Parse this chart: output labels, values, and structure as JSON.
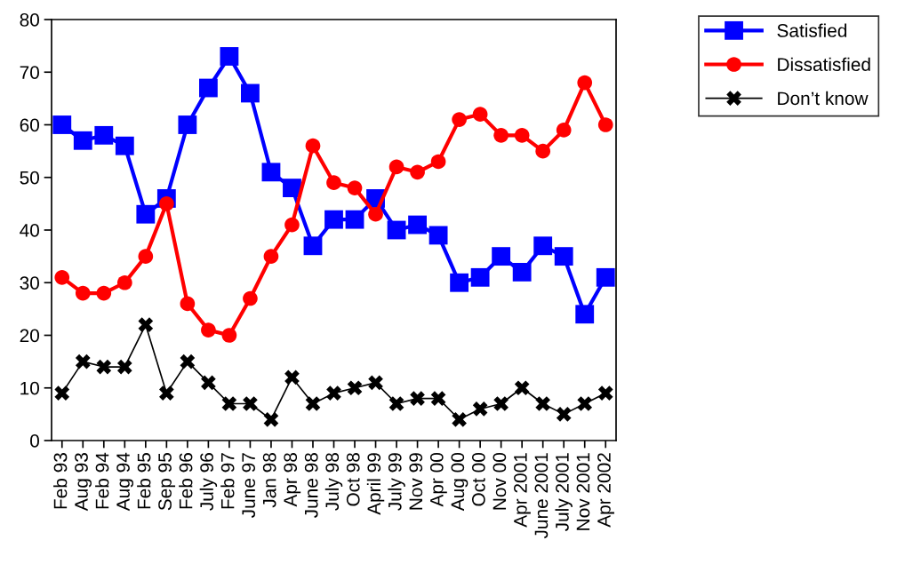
{
  "chart_data": {
    "type": "line",
    "categories": [
      "Feb 93",
      "Aug 93",
      "Feb 94",
      "Aug 94",
      "Feb 95",
      "Sep 95",
      "Feb 96",
      "July 96",
      "Feb 97",
      "June 97",
      "Jan 98",
      "Apr 98",
      "June 98",
      "July 98",
      "Oct 98",
      "April 99",
      "July 99",
      "Nov 99",
      "Apr 00",
      "Aug 00",
      "Oct 00",
      "Nov 00",
      "Apr 2001",
      "June 2001",
      "July 2001",
      "Nov 2001",
      "Apr 2002"
    ],
    "series": [
      {
        "name": "Satisfied",
        "color": "#0000ff",
        "marker": "square",
        "values": [
          60,
          57,
          58,
          56,
          43,
          46,
          60,
          67,
          73,
          66,
          51,
          48,
          37,
          42,
          42,
          46,
          40,
          41,
          39,
          30,
          31,
          35,
          32,
          37,
          35,
          24,
          31
        ]
      },
      {
        "name": "Dissatisfied",
        "color": "#ff0000",
        "marker": "circle",
        "values": [
          31,
          28,
          28,
          30,
          35,
          45,
          26,
          21,
          20,
          27,
          35,
          41,
          56,
          49,
          48,
          43,
          52,
          51,
          53,
          61,
          62,
          58,
          58,
          55,
          59,
          68,
          60
        ]
      },
      {
        "name": "Don’t know",
        "color": "#000000",
        "marker": "cross",
        "values": [
          9,
          15,
          14,
          14,
          22,
          9,
          15,
          11,
          7,
          7,
          4,
          12,
          7,
          9,
          10,
          11,
          7,
          8,
          8,
          4,
          6,
          7,
          10,
          7,
          5,
          7,
          9
        ]
      }
    ],
    "ylim": [
      0,
      80
    ],
    "yticks": [
      0,
      10,
      20,
      30,
      40,
      50,
      60,
      70,
      80
    ],
    "grid": false,
    "legend": "top right",
    "line_style": "solid"
  }
}
